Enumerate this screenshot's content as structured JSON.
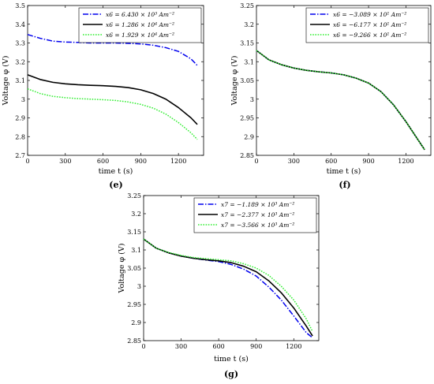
{
  "chart_data": [
    {
      "type": "line",
      "caption": "(e)",
      "xlabel": "time t (s)",
      "ylabel": "Voltage φ (V)",
      "xlim": [
        0,
        1400
      ],
      "ylim": [
        2.7,
        3.5
      ],
      "xticks": [
        0,
        300,
        600,
        900,
        1200
      ],
      "yticks": [
        2.7,
        2.8,
        2.9,
        3.0,
        3.1,
        3.2,
        3.3,
        3.4,
        3.5
      ],
      "ytick_labels": [
        "2.7",
        "2.8",
        "2.9",
        "3",
        "3.1",
        "3.2",
        "3.3",
        "3.4",
        "3.5"
      ],
      "xtick_labels": [
        "0",
        "300",
        "600",
        "900",
        "1200"
      ],
      "legend_position": "top-right",
      "grid": false,
      "series": [
        {
          "name": "x6 = 6.430 × 10³ Am⁻²",
          "color": "#0000ee",
          "style": "dashdot",
          "x": [
            0,
            100,
            200,
            300,
            400,
            500,
            600,
            700,
            800,
            900,
            1000,
            1100,
            1200,
            1300,
            1350
          ],
          "y": [
            3.345,
            3.325,
            3.31,
            3.305,
            3.303,
            3.3,
            3.3,
            3.3,
            3.298,
            3.295,
            3.288,
            3.275,
            3.255,
            3.215,
            3.18
          ]
        },
        {
          "name": "x6 = 1.286 × 10⁴ Am⁻²",
          "color": "#000000",
          "style": "solid",
          "x": [
            0,
            100,
            200,
            300,
            400,
            500,
            600,
            700,
            800,
            900,
            1000,
            1100,
            1200,
            1300,
            1350
          ],
          "y": [
            3.13,
            3.105,
            3.09,
            3.082,
            3.077,
            3.074,
            3.072,
            3.068,
            3.062,
            3.05,
            3.03,
            3.0,
            2.955,
            2.9,
            2.865
          ]
        },
        {
          "name": "x6 = 1.929 × 10⁴ Am⁻²",
          "color": "#33ee33",
          "style": "dotted",
          "x": [
            0,
            100,
            200,
            300,
            400,
            500,
            600,
            700,
            800,
            900,
            1000,
            1100,
            1200,
            1300,
            1350
          ],
          "y": [
            3.055,
            3.03,
            3.015,
            3.008,
            3.003,
            3.0,
            2.997,
            2.993,
            2.985,
            2.972,
            2.952,
            2.92,
            2.875,
            2.82,
            2.785
          ]
        }
      ]
    },
    {
      "type": "line",
      "caption": "(f)",
      "xlabel": "time t (s)",
      "ylabel": "Voltage φ (V)",
      "xlim": [
        0,
        1400
      ],
      "ylim": [
        2.85,
        3.25
      ],
      "xticks": [
        0,
        300,
        600,
        900,
        1200
      ],
      "yticks": [
        2.85,
        2.9,
        2.95,
        3.0,
        3.05,
        3.1,
        3.15,
        3.2,
        3.25
      ],
      "ytick_labels": [
        "2.85",
        "2.9",
        "2.95",
        "3",
        "3.05",
        "3.1",
        "3.15",
        "3.2",
        "3.25"
      ],
      "xtick_labels": [
        "0",
        "300",
        "600",
        "900",
        "1200"
      ],
      "legend_position": "top-right",
      "grid": false,
      "series": [
        {
          "name": "x6 = −3.089 × 10¹ Am⁻²",
          "color": "#0000ee",
          "style": "dashdot",
          "x": [
            0,
            100,
            200,
            300,
            400,
            500,
            600,
            700,
            800,
            900,
            1000,
            1100,
            1200,
            1300,
            1350
          ],
          "y": [
            3.13,
            3.105,
            3.092,
            3.083,
            3.077,
            3.073,
            3.07,
            3.065,
            3.056,
            3.043,
            3.02,
            2.985,
            2.94,
            2.89,
            2.865
          ]
        },
        {
          "name": "x6 = −6.177 × 10¹ Am⁻²",
          "color": "#000000",
          "style": "solid",
          "x": [
            0,
            100,
            200,
            300,
            400,
            500,
            600,
            700,
            800,
            900,
            1000,
            1100,
            1200,
            1300,
            1350
          ],
          "y": [
            3.13,
            3.105,
            3.092,
            3.083,
            3.077,
            3.073,
            3.07,
            3.065,
            3.056,
            3.043,
            3.02,
            2.985,
            2.94,
            2.89,
            2.865
          ]
        },
        {
          "name": "x6 = −9.266 × 10¹ Am⁻²",
          "color": "#33ee33",
          "style": "dotted",
          "x": [
            0,
            100,
            200,
            300,
            400,
            500,
            600,
            700,
            800,
            900,
            1000,
            1100,
            1200,
            1300,
            1350
          ],
          "y": [
            3.13,
            3.105,
            3.092,
            3.083,
            3.077,
            3.073,
            3.07,
            3.065,
            3.056,
            3.043,
            3.02,
            2.985,
            2.94,
            2.89,
            2.865
          ]
        }
      ]
    },
    {
      "type": "line",
      "caption": "(g)",
      "xlabel": "time t (s)",
      "ylabel": "Voltage φ (V)",
      "xlim": [
        0,
        1400
      ],
      "ylim": [
        2.85,
        3.25
      ],
      "xticks": [
        0,
        300,
        600,
        900,
        1200
      ],
      "yticks": [
        2.85,
        2.9,
        2.95,
        3.0,
        3.05,
        3.1,
        3.15,
        3.2,
        3.25
      ],
      "ytick_labels": [
        "2.85",
        "2.9",
        "2.95",
        "3",
        "3.05",
        "3.1",
        "3.15",
        "3.2",
        "3.25"
      ],
      "xtick_labels": [
        "0",
        "300",
        "600",
        "900",
        "1200"
      ],
      "legend_position": "top-right",
      "grid": false,
      "series": [
        {
          "name": "x7 = −1.189 × 10³ Am⁻²",
          "color": "#0000ee",
          "style": "dashdot",
          "x": [
            0,
            100,
            200,
            300,
            400,
            500,
            600,
            700,
            800,
            900,
            1000,
            1100,
            1200,
            1300,
            1350
          ],
          "y": [
            3.13,
            3.105,
            3.092,
            3.083,
            3.077,
            3.072,
            3.068,
            3.06,
            3.047,
            3.028,
            2.998,
            2.962,
            2.918,
            2.872,
            2.858
          ]
        },
        {
          "name": "x7 = −2.377 × 10³ Am⁻²",
          "color": "#000000",
          "style": "solid",
          "x": [
            0,
            100,
            200,
            300,
            400,
            500,
            600,
            700,
            800,
            900,
            1000,
            1100,
            1200,
            1300,
            1350
          ],
          "y": [
            3.13,
            3.105,
            3.092,
            3.083,
            3.077,
            3.073,
            3.07,
            3.065,
            3.055,
            3.04,
            3.015,
            2.982,
            2.94,
            2.89,
            2.863
          ]
        },
        {
          "name": "x7 = −3.566 × 10³ Am⁻²",
          "color": "#33ee33",
          "style": "dotted",
          "x": [
            0,
            100,
            200,
            300,
            400,
            500,
            600,
            700,
            800,
            900,
            1000,
            1100,
            1200,
            1300,
            1350
          ],
          "y": [
            3.13,
            3.105,
            3.093,
            3.085,
            3.079,
            3.076,
            3.073,
            3.07,
            3.062,
            3.05,
            3.03,
            3.0,
            2.962,
            2.91,
            2.875
          ]
        }
      ]
    }
  ]
}
